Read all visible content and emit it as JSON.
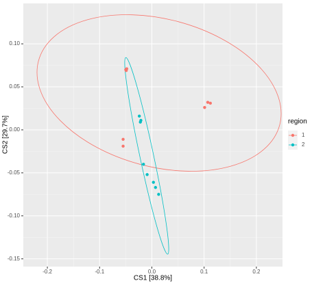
{
  "chart_data": {
    "type": "scatter",
    "x_label": "CS1  [38.8%]",
    "y_label": "CS2  [29.7%]",
    "legend_title": "region",
    "legend_position": "right",
    "xlim": [
      -0.246,
      0.25
    ],
    "ylim": [
      -0.159,
      0.147
    ],
    "xticks": [
      -0.2,
      -0.1,
      {
        "value": 0,
        "label": "0.0"
      },
      0.1,
      0.2
    ],
    "yticks": [
      -0.15,
      {
        "value": -0.1,
        "label": "-0.10"
      },
      -0.05,
      {
        "value": 0,
        "label": "0.00"
      },
      0.05,
      {
        "value": 0.1,
        "label": "0.10"
      }
    ],
    "grid": true,
    "series": [
      {
        "name": "1",
        "color": "#f8766d",
        "x": [
          -0.05,
          -0.048,
          -0.049,
          -0.055,
          -0.055,
          0.101,
          0.107,
          0.112
        ],
        "values": [
          0.07,
          0.071,
          0.069,
          -0.011,
          -0.019,
          0.026,
          0.032,
          0.031
        ]
      },
      {
        "name": "2",
        "color": "#00bfc4",
        "x": [
          -0.024,
          -0.021,
          -0.022,
          -0.016,
          -0.009,
          0.003,
          0.007,
          0.013
        ],
        "values": [
          0.016,
          0.011,
          0.009,
          -0.04,
          -0.052,
          -0.061,
          -0.067,
          -0.075
        ]
      }
    ]
  }
}
